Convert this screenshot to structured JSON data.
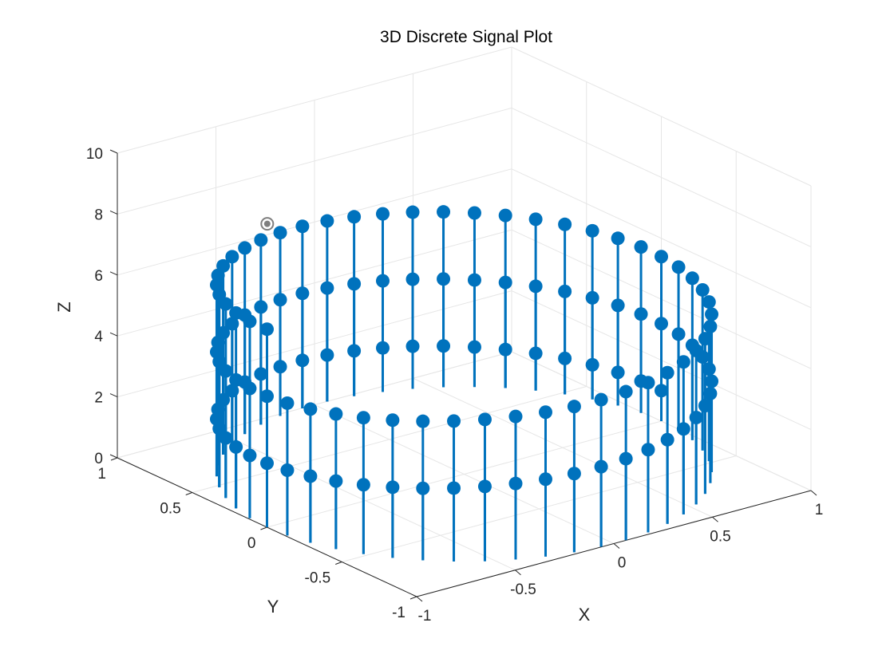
{
  "chart_data": {
    "type": "stem3",
    "title": "3D Discrete Signal Plot",
    "xlabel": "X",
    "ylabel": "Y",
    "zlabel": "Z",
    "xlim": [
      -1,
      1
    ],
    "ylim": [
      -1,
      1
    ],
    "zlim": [
      0,
      10
    ],
    "xticks": [
      "-1",
      "-0.5",
      "0",
      "0.5",
      "1"
    ],
    "yticks": [
      "-1",
      "-0.5",
      "0",
      "0.5",
      "1"
    ],
    "zticks": [
      "0",
      "2",
      "4",
      "6",
      "8",
      "10"
    ],
    "grid": true,
    "series_color": "#0072BD",
    "highlight_color": "#7F7F7F",
    "series": {
      "description_of_data": "helix stems: x = cos(t), y = sin(t), z = t/(2*pi)*... sampled over 2.5 turns",
      "turns": 2.5,
      "points_per_turn": 50,
      "z_start": 1.0,
      "z_end": 6.5,
      "x": "cos(theta)",
      "y": "sin(theta)"
    },
    "highlighted_point": {
      "x": -0.27,
      "y": 0.96,
      "z": 6.5
    }
  }
}
